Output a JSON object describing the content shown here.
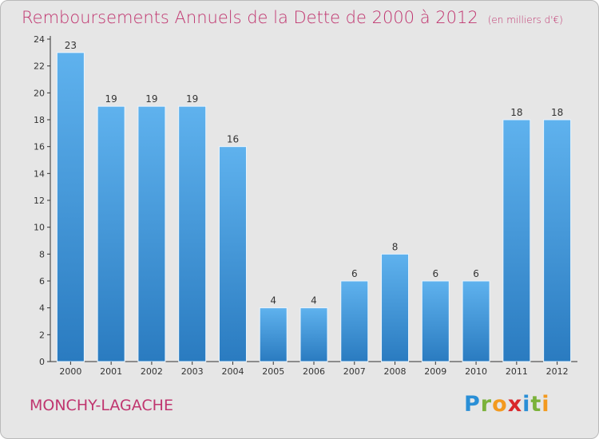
{
  "header": {
    "title": "Remboursements Annuels de la Dette de 2000 à 2012",
    "unit": "(en milliers d'€)"
  },
  "footer": {
    "commune": "MONCHY-LAGACHE",
    "logo": [
      "P",
      "r",
      "o",
      "x",
      "i",
      "t",
      "i"
    ],
    "logo_colors": [
      "#2a8fd6",
      "#7bb23a",
      "#f39a1f",
      "#d9262a",
      "#2a8fd6",
      "#7bb23a",
      "#f39a1f"
    ]
  },
  "colors": {
    "bar_top": "#5fb2ee",
    "bar_bottom": "#2a7bc0",
    "bar_outline": "#e9f4fd",
    "background": "#e6e6e6",
    "title": "#c0356f"
  },
  "chart_data": {
    "type": "bar",
    "categories": [
      "2000",
      "2001",
      "2002",
      "2003",
      "2004",
      "2005",
      "2006",
      "2007",
      "2008",
      "2009",
      "2010",
      "2011",
      "2012"
    ],
    "values": [
      23,
      19,
      19,
      19,
      16,
      4,
      4,
      6,
      8,
      6,
      6,
      18,
      18
    ],
    "title": "Remboursements Annuels de la Dette de 2000 à 2012",
    "xlabel": "",
    "ylabel": "",
    "ylim": [
      0,
      24
    ],
    "yticks": [
      0,
      2,
      4,
      6,
      8,
      10,
      12,
      14,
      16,
      18,
      20,
      22,
      24
    ],
    "grid": false
  }
}
